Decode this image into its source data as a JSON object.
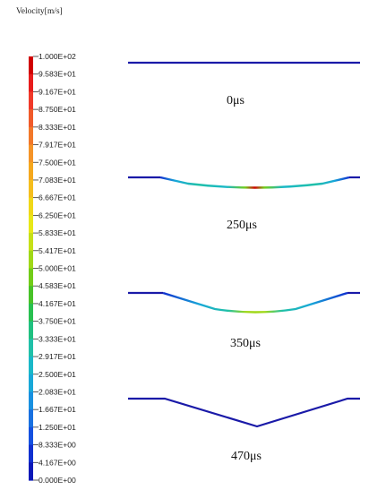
{
  "title": "Velocity[m/s]",
  "legend": {
    "labels": [
      "1.000E+02",
      "9.583E+01",
      "9.167E+01",
      "8.750E+01",
      "8.333E+01",
      "7.917E+01",
      "7.500E+01",
      "7.083E+01",
      "6.667E+01",
      "6.250E+01",
      "5.833E+01",
      "5.417E+01",
      "5.000E+01",
      "4.583E+01",
      "4.167E+01",
      "3.750E+01",
      "3.333E+01",
      "2.917E+01",
      "2.500E+01",
      "2.083E+01",
      "1.667E+01",
      "1.250E+01",
      "8.333E+00",
      "4.167E+00",
      "0.000E+00"
    ],
    "colors": [
      "#d00000",
      "#e81c1c",
      "#f03a2a",
      "#f05a2a",
      "#f2782a",
      "#f59428",
      "#f5a81e",
      "#f5be1e",
      "#f0d818",
      "#e8e818",
      "#c6e018",
      "#a0d818",
      "#72cc18",
      "#48c228",
      "#28c050",
      "#20c080",
      "#20c0a8",
      "#1ab8c8",
      "#18a8d8",
      "#1890e0",
      "#1870e0",
      "#1450e0",
      "#1030d0",
      "#0a18b8",
      "#0010a0"
    ]
  },
  "states": [
    {
      "label": "0μs"
    },
    {
      "label": "250μs"
    },
    {
      "label": "350μs"
    },
    {
      "label": "470μs"
    }
  ]
}
